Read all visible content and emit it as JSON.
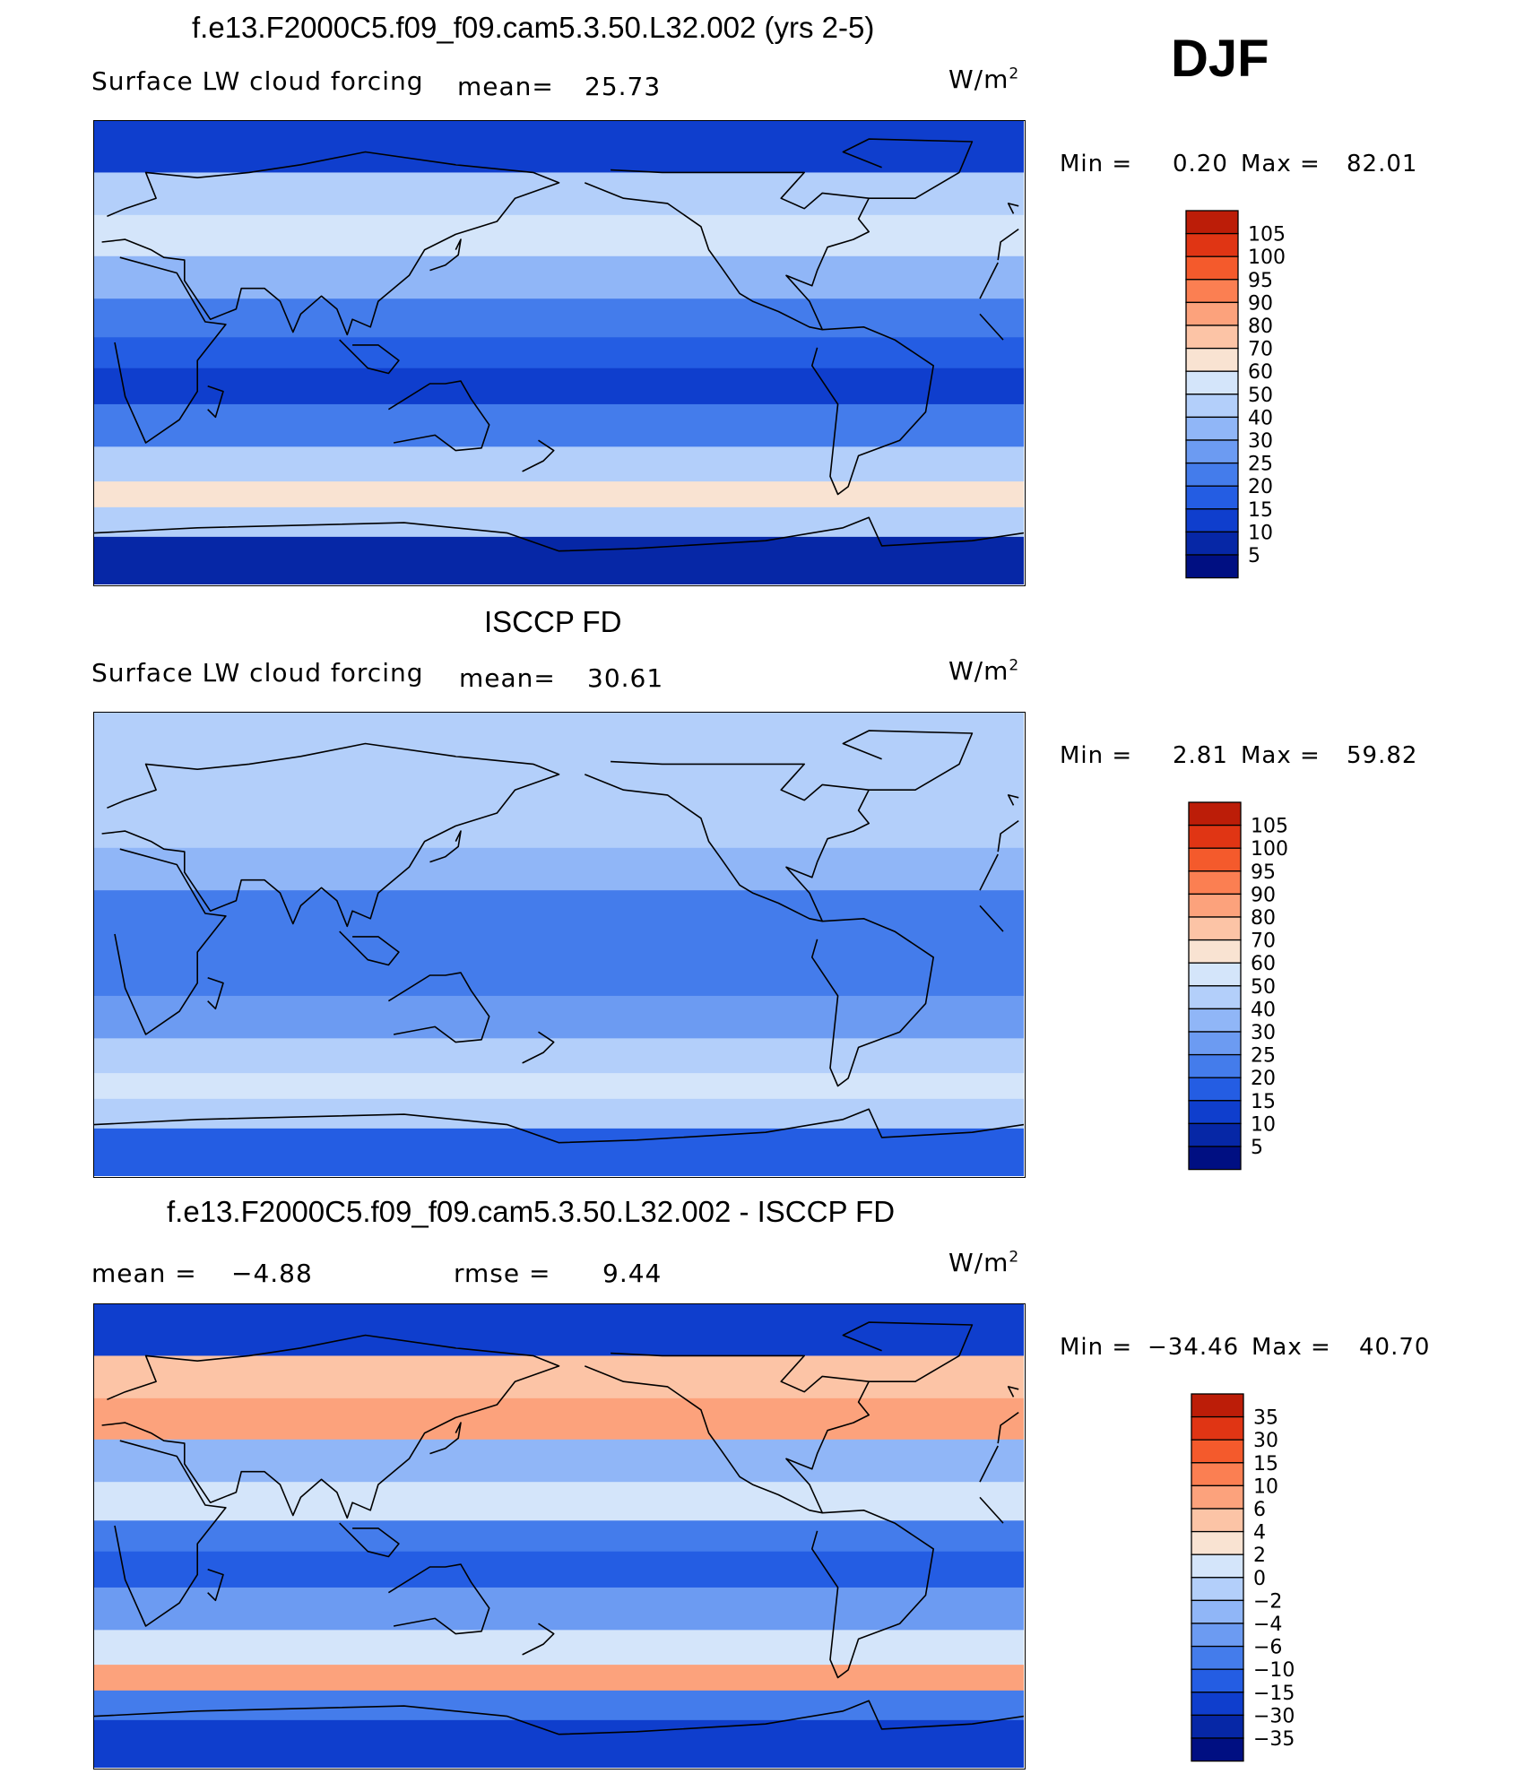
{
  "season": "DJF",
  "colors": {
    "positive": [
      "#f9e3d2",
      "#fcc4a6",
      "#fca27c",
      "#fb7f52",
      "#f45a2c",
      "#e03514",
      "#bc1d08",
      "#8a0a06"
    ],
    "negative": [
      "#d4e5fa",
      "#b3cffa",
      "#90b6f7",
      "#6c9bf2",
      "#447ceb",
      "#245de3",
      "#0f3ecd",
      "#0627a6",
      "#000f82"
    ]
  },
  "panels": [
    {
      "title": "f.e13.F2000C5.f09_f09.cam5.3.50.L32.002 (yrs 2-5)",
      "variable": "Surface LW cloud forcing",
      "mean_label": "mean=",
      "mean_value": "25.73",
      "units": "W/m",
      "units_exp": "2",
      "min_label": "Min =",
      "min_value": "0.20",
      "max_label": "Max =",
      "max_value": "82.01",
      "legend": [
        "105",
        "100",
        "95",
        "90",
        "80",
        "70",
        "60",
        "50",
        "40",
        "30",
        "25",
        "20",
        "15",
        "10",
        "5"
      ]
    },
    {
      "title": "ISCCP FD",
      "variable": "Surface LW cloud forcing",
      "mean_label": "mean=",
      "mean_value": "30.61",
      "units": "W/m",
      "units_exp": "2",
      "min_label": "Min =",
      "min_value": "2.81",
      "max_label": "Max =",
      "max_value": "59.82",
      "legend": [
        "105",
        "100",
        "95",
        "90",
        "80",
        "70",
        "60",
        "50",
        "40",
        "30",
        "25",
        "20",
        "15",
        "10",
        "5"
      ]
    },
    {
      "title": "f.e13.F2000C5.f09_f09.cam5.3.50.L32.002 - ISCCP FD",
      "mean_label": "mean =",
      "mean_value": "−4.88",
      "rmse_label": "rmse =",
      "rmse_value": "9.44",
      "units": "W/m",
      "units_exp": "2",
      "min_label": "Min =",
      "min_value": "−34.46",
      "max_label": "Max =",
      "max_value": "40.70",
      "legend": [
        "35",
        "30",
        "15",
        "10",
        "6",
        "4",
        "2",
        "0",
        "−2",
        "−4",
        "−6",
        "−10",
        "−15",
        "−30",
        "−35"
      ]
    }
  ],
  "chart_data": [
    {
      "type": "heatmap",
      "title": "f.e13.F2000C5.f09_f09.cam5.3.50.L32.002 (yrs 2-5)",
      "field": "Surface LW cloud forcing",
      "units": "W/m2",
      "mean": 25.73,
      "min": 0.2,
      "max": 82.01,
      "contour_levels": [
        5,
        10,
        15,
        20,
        25,
        30,
        40,
        50,
        60,
        70,
        80,
        90,
        95,
        100,
        105
      ],
      "bands": [
        {
          "lat": 78,
          "value": 12
        },
        {
          "lat": 62,
          "value": 42
        },
        {
          "lat": 45,
          "value": 55
        },
        {
          "lat": 30,
          "value": 30
        },
        {
          "lat": 12,
          "value": 22
        },
        {
          "lat": 0,
          "value": 18
        },
        {
          "lat": -12,
          "value": 14
        },
        {
          "lat": -28,
          "value": 22
        },
        {
          "lat": -45,
          "value": 45
        },
        {
          "lat": -55,
          "value": 60
        },
        {
          "lat": -65,
          "value": 40
        },
        {
          "lat": -78,
          "value": 6
        }
      ]
    },
    {
      "type": "heatmap",
      "title": "ISCCP FD",
      "field": "Surface LW cloud forcing",
      "units": "W/m2",
      "mean": 30.61,
      "min": 2.81,
      "max": 59.82,
      "contour_levels": [
        5,
        10,
        15,
        20,
        25,
        30,
        40,
        50,
        60,
        70,
        80,
        90,
        95,
        100,
        105
      ],
      "bands": [
        {
          "lat": 78,
          "value": 45
        },
        {
          "lat": 62,
          "value": 42
        },
        {
          "lat": 45,
          "value": 40
        },
        {
          "lat": 30,
          "value": 30
        },
        {
          "lat": 12,
          "value": 20
        },
        {
          "lat": 0,
          "value": 24
        },
        {
          "lat": -12,
          "value": 24
        },
        {
          "lat": -28,
          "value": 27
        },
        {
          "lat": -45,
          "value": 45
        },
        {
          "lat": -55,
          "value": 55
        },
        {
          "lat": -65,
          "value": 45
        },
        {
          "lat": -78,
          "value": 18
        }
      ]
    },
    {
      "type": "heatmap",
      "title": "f.e13.F2000C5.f09_f09.cam5.3.50.L32.002 - ISCCP FD",
      "field": "difference",
      "units": "W/m2",
      "mean": -4.88,
      "rmse": 9.44,
      "min": -34.46,
      "max": 40.7,
      "contour_levels": [
        -35,
        -30,
        -15,
        -10,
        -6,
        -4,
        -2,
        0,
        2,
        4,
        6,
        10,
        15,
        30,
        35
      ],
      "bands": [
        {
          "lat": 78,
          "value": -25
        },
        {
          "lat": 62,
          "value": 4
        },
        {
          "lat": 45,
          "value": 8
        },
        {
          "lat": 30,
          "value": -3
        },
        {
          "lat": 12,
          "value": 1
        },
        {
          "lat": 0,
          "value": -8
        },
        {
          "lat": -12,
          "value": -12
        },
        {
          "lat": -28,
          "value": -6
        },
        {
          "lat": -45,
          "value": 1
        },
        {
          "lat": -55,
          "value": 6
        },
        {
          "lat": -65,
          "value": -8
        },
        {
          "lat": -78,
          "value": -20
        }
      ]
    }
  ]
}
